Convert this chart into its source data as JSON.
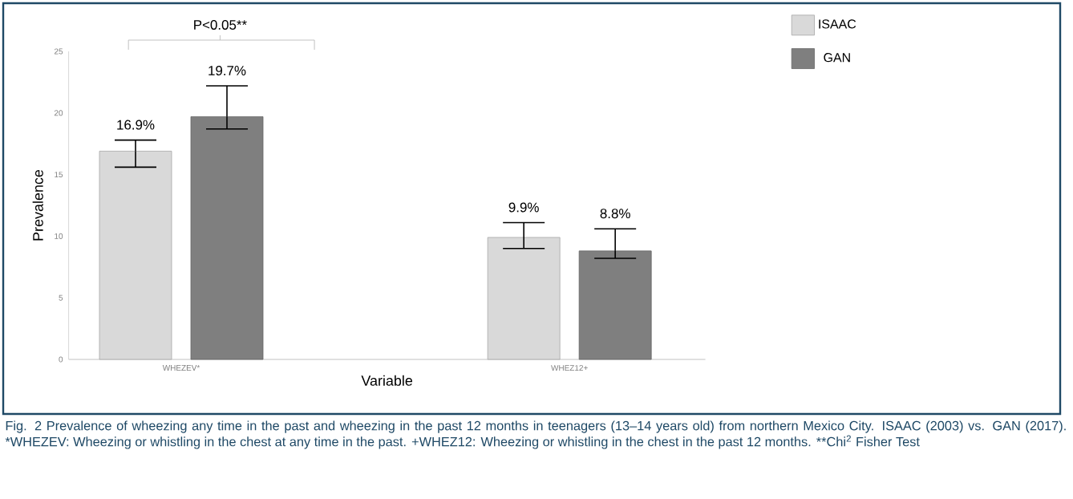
{
  "chart_data": {
    "type": "bar",
    "xlabel": "Variable",
    "ylabel": "Prevalence",
    "categories": [
      "WHEZEV*",
      "WHEZ12+"
    ],
    "ylim": [
      0,
      25
    ],
    "yticks": [
      0,
      5,
      10,
      15,
      20,
      25
    ],
    "legend": "top right",
    "grid": false,
    "series": [
      {
        "name": "ISAAC",
        "color": "#d9d9d9",
        "values": [
          16.9,
          9.9
        ],
        "errors": [
          [
            15.6,
            17.8
          ],
          [
            9.0,
            11.1
          ]
        ],
        "value_labels": [
          "16.9%",
          "9.9%"
        ]
      },
      {
        "name": "GAN",
        "color": "#7f7f7f",
        "values": [
          19.7,
          8.8
        ],
        "errors": [
          [
            18.7,
            22.2
          ],
          [
            8.2,
            10.6
          ]
        ],
        "value_labels": [
          "19.7%",
          "8.8%"
        ]
      }
    ],
    "annotations": [
      "P<0.05**",
      "Fig. 2 Prevalence of wheezing any time in the past and wheezing in the past 12 months in teenagers (13–14 years old) from northern Mexico City. ISAAC (2003) vs. GAN (2017). *WHEZEV: Wheezing or whistling in the chest at any time in the past. +WHEZ12: Wheezing or whistling in the chest in the past 12 months. **Chi$^{2}$ Fisher Test"
    ]
  }
}
